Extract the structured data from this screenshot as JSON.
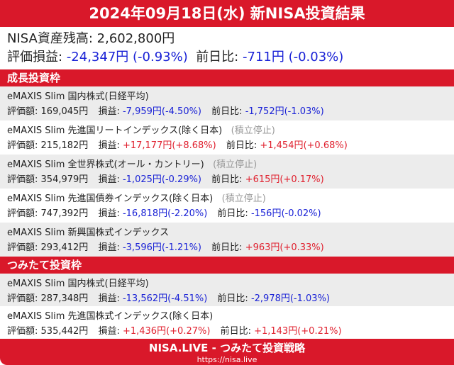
{
  "title": "2024年09月18日(水) 新NISA投資結果",
  "summary": {
    "balance_label": "NISA資産残高:",
    "balance": "2,602,800円",
    "pl_label": "評価損益:",
    "pl": "-24,347円 (-0.93%)",
    "day_label": "前日比:",
    "day": "-711円 (-0.03%)"
  },
  "labels": {
    "value": "評価額:",
    "pl": "損益:",
    "day": "前日比:"
  },
  "sections": [
    {
      "title": "成長投資枠",
      "funds": [
        {
          "name": "eMAXIS Slim 国内株式(日経平均)",
          "note": "",
          "value": "169,045円",
          "pl": "-7,959円(-4.50%)",
          "day": "-1,752円(-1.03%)"
        },
        {
          "name": "eMAXIS Slim 先進国リートインデックス(除く日本)",
          "note": "(積立停止)",
          "value": "215,182円",
          "pl": "+17,177円(+8.68%)",
          "day": "+1,454円(+0.68%)"
        },
        {
          "name": "eMAXIS Slim 全世界株式(オール・カントリー)",
          "note": "(積立停止)",
          "value": "354,979円",
          "pl": "-1,025円(-0.29%)",
          "day": "+615円(+0.17%)"
        },
        {
          "name": "eMAXIS Slim 先進国債券インデックス(除く日本)",
          "note": "(積立停止)",
          "value": "747,392円",
          "pl": "-16,818円(-2.20%)",
          "day": "-156円(-0.02%)"
        },
        {
          "name": "eMAXIS Slim 新興国株式インデックス",
          "note": "",
          "value": "293,412円",
          "pl": "-3,596円(-1.21%)",
          "day": "+963円(+0.33%)"
        }
      ]
    },
    {
      "title": "つみたて投資枠",
      "funds": [
        {
          "name": "eMAXIS Slim 国内株式(日経平均)",
          "note": "",
          "value": "287,348円",
          "pl": "-13,562円(-4.51%)",
          "day": "-2,978円(-1.03%)"
        },
        {
          "name": "eMAXIS Slim 先進国株式インデックス(除く日本)",
          "note": "",
          "value": "535,442円",
          "pl": "+1,436円(+0.27%)",
          "day": "+1,143円(+0.21%)"
        }
      ]
    }
  ],
  "footer": {
    "brand": "NISA.LIVE - つみたて投資戦略",
    "url": "https://nisa.live"
  }
}
